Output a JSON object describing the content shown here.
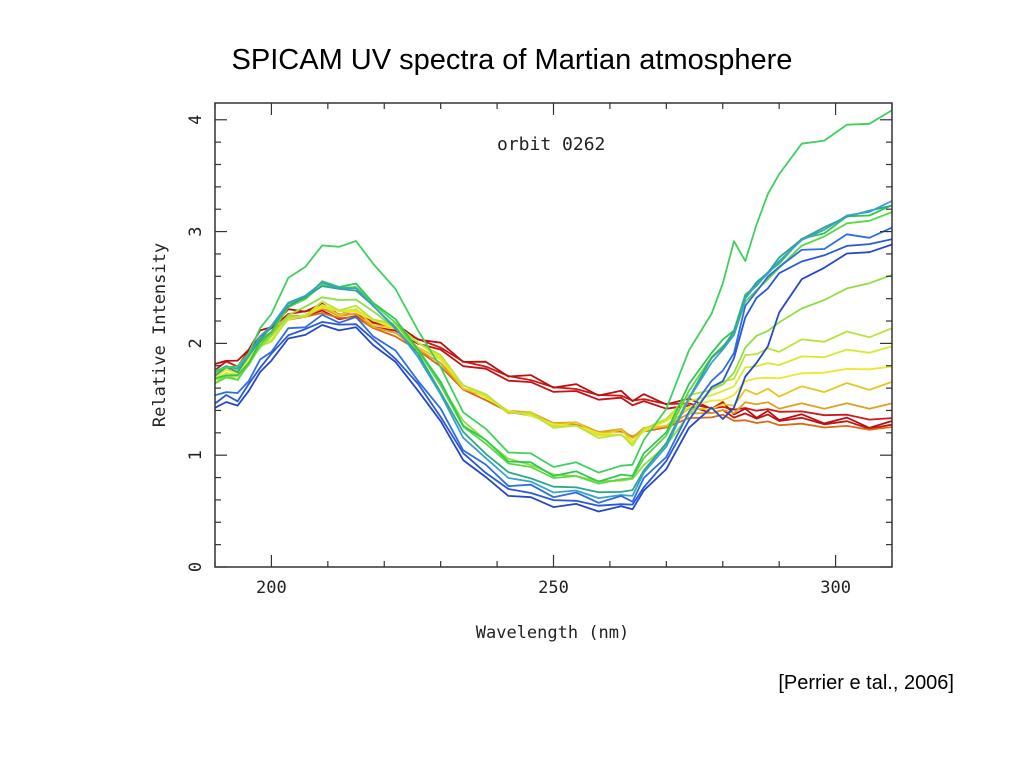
{
  "slide": {
    "title": "SPICAM UV spectra of Martian atmosphere",
    "citation": "[Perrier e tal., 2006]"
  },
  "chart_data": {
    "type": "line",
    "title": "",
    "annotation": "orbit 0262",
    "xlabel": "Wavelength (nm)",
    "ylabel": "Relative Intensity",
    "xlim": [
      190,
      310
    ],
    "ylim": [
      0,
      4.15
    ],
    "x_ticks": [
      200,
      250,
      300
    ],
    "y_ticks": [
      0,
      1,
      2,
      3,
      4
    ],
    "grid": false,
    "legend": "none",
    "x": [
      190,
      192,
      194,
      196,
      198,
      200,
      203,
      206,
      209,
      212,
      215,
      218,
      222,
      226,
      230,
      234,
      238,
      242,
      246,
      250,
      254,
      258,
      262,
      264,
      266,
      270,
      274,
      278,
      280,
      282,
      284,
      286,
      288,
      290,
      294,
      298,
      302,
      306,
      310
    ],
    "series": [
      {
        "color": "#cc1a1a",
        "values": [
          1.75,
          1.85,
          1.78,
          1.95,
          2.05,
          2.15,
          2.25,
          2.3,
          2.3,
          2.27,
          2.25,
          2.2,
          2.12,
          2.05,
          1.95,
          1.85,
          1.78,
          1.72,
          1.66,
          1.62,
          1.58,
          1.55,
          1.52,
          1.5,
          1.49,
          1.47,
          1.45,
          1.43,
          1.42,
          1.42,
          1.41,
          1.41,
          1.4,
          1.4,
          1.38,
          1.37,
          1.35,
          1.33,
          1.32
        ]
      },
      {
        "color": "#c41414",
        "values": [
          1.72,
          1.82,
          1.75,
          1.92,
          2.02,
          2.12,
          2.22,
          2.27,
          2.27,
          2.24,
          2.22,
          2.17,
          2.09,
          2.02,
          1.92,
          1.82,
          1.75,
          1.69,
          1.63,
          1.59,
          1.55,
          1.52,
          1.49,
          1.47,
          1.46,
          1.44,
          1.42,
          1.4,
          1.38,
          1.36,
          1.35,
          1.35,
          1.34,
          1.33,
          1.31,
          1.3,
          1.28,
          1.26,
          1.25
        ]
      },
      {
        "color": "#b81212",
        "values": [
          1.78,
          1.88,
          1.81,
          1.98,
          2.08,
          2.18,
          2.27,
          2.32,
          2.32,
          2.29,
          2.27,
          2.22,
          2.14,
          2.07,
          1.97,
          1.87,
          1.8,
          1.74,
          1.68,
          1.64,
          1.6,
          1.57,
          1.54,
          1.52,
          1.51,
          1.49,
          1.47,
          1.45,
          1.44,
          1.4,
          1.38,
          1.37,
          1.36,
          1.35,
          1.33,
          1.32,
          1.3,
          1.28,
          1.27
        ]
      },
      {
        "color": "#d86a1a",
        "values": [
          1.7,
          1.8,
          1.73,
          1.9,
          2.0,
          2.1,
          2.2,
          2.25,
          2.26,
          2.24,
          2.22,
          2.15,
          2.05,
          1.95,
          1.78,
          1.6,
          1.48,
          1.4,
          1.34,
          1.3,
          1.26,
          1.22,
          1.2,
          1.18,
          1.2,
          1.26,
          1.32,
          1.35,
          1.35,
          1.32,
          1.3,
          1.3,
          1.29,
          1.28,
          1.27,
          1.26,
          1.25,
          1.24,
          1.24
        ]
      },
      {
        "color": "#e0a020",
        "values": [
          1.72,
          1.82,
          1.75,
          1.92,
          2.02,
          2.12,
          2.22,
          2.27,
          2.29,
          2.27,
          2.24,
          2.17,
          2.07,
          1.97,
          1.8,
          1.62,
          1.5,
          1.42,
          1.36,
          1.31,
          1.27,
          1.23,
          1.21,
          1.18,
          1.22,
          1.28,
          1.35,
          1.4,
          1.38,
          1.4,
          1.45,
          1.48,
          1.45,
          1.44,
          1.44,
          1.44,
          1.44,
          1.44,
          1.44
        ]
      },
      {
        "color": "#e6c820",
        "values": [
          1.7,
          1.8,
          1.73,
          1.9,
          2.0,
          2.1,
          2.21,
          2.27,
          2.3,
          2.29,
          2.26,
          2.2,
          2.1,
          2.0,
          1.82,
          1.63,
          1.5,
          1.41,
          1.35,
          1.3,
          1.26,
          1.22,
          1.19,
          1.16,
          1.2,
          1.3,
          1.38,
          1.45,
          1.42,
          1.48,
          1.55,
          1.58,
          1.56,
          1.56,
          1.58,
          1.6,
          1.61,
          1.62,
          1.62
        ]
      },
      {
        "color": "#eee82a",
        "values": [
          1.68,
          1.78,
          1.71,
          1.88,
          1.98,
          2.08,
          2.2,
          2.27,
          2.31,
          2.3,
          2.27,
          2.22,
          2.12,
          2.02,
          1.84,
          1.64,
          1.5,
          1.41,
          1.34,
          1.29,
          1.25,
          1.21,
          1.17,
          1.14,
          1.2,
          1.32,
          1.42,
          1.5,
          1.48,
          1.55,
          1.65,
          1.7,
          1.68,
          1.7,
          1.72,
          1.75,
          1.76,
          1.78,
          1.78
        ]
      },
      {
        "color": "#d8ea30",
        "values": [
          1.66,
          1.76,
          1.69,
          1.86,
          1.96,
          2.06,
          2.19,
          2.27,
          2.32,
          2.31,
          2.28,
          2.23,
          2.13,
          2.03,
          1.85,
          1.65,
          1.5,
          1.41,
          1.34,
          1.28,
          1.24,
          1.2,
          1.16,
          1.13,
          1.2,
          1.34,
          1.46,
          1.56,
          1.55,
          1.64,
          1.76,
          1.82,
          1.8,
          1.83,
          1.86,
          1.9,
          1.92,
          1.94,
          1.95
        ]
      },
      {
        "color": "#b8e43a",
        "values": [
          1.64,
          1.74,
          1.67,
          1.84,
          1.94,
          2.05,
          2.19,
          2.28,
          2.34,
          2.33,
          2.3,
          2.25,
          2.14,
          2.04,
          1.86,
          1.66,
          1.51,
          1.42,
          1.34,
          1.28,
          1.23,
          1.19,
          1.15,
          1.12,
          1.2,
          1.36,
          1.5,
          1.62,
          1.62,
          1.72,
          1.86,
          1.94,
          1.92,
          1.96,
          2.0,
          2.05,
          2.07,
          2.09,
          2.1
        ]
      },
      {
        "color": "#8ee040",
        "values": [
          1.63,
          1.73,
          1.66,
          1.84,
          1.95,
          2.08,
          2.24,
          2.34,
          2.4,
          2.4,
          2.38,
          2.3,
          2.12,
          1.95,
          1.62,
          1.32,
          1.12,
          0.98,
          0.9,
          0.84,
          0.8,
          0.78,
          0.76,
          0.8,
          0.9,
          1.1,
          1.35,
          1.6,
          1.62,
          1.75,
          1.95,
          2.08,
          2.1,
          2.2,
          2.3,
          2.4,
          2.48,
          2.55,
          2.6
        ]
      },
      {
        "color": "#5ad844",
        "values": [
          1.62,
          1.72,
          1.65,
          1.84,
          1.96,
          2.12,
          2.3,
          2.42,
          2.5,
          2.52,
          2.48,
          2.38,
          2.16,
          1.96,
          1.6,
          1.28,
          1.08,
          0.95,
          0.87,
          0.82,
          0.79,
          0.77,
          0.76,
          0.82,
          0.95,
          1.2,
          1.55,
          1.9,
          1.95,
          2.1,
          2.35,
          2.5,
          2.55,
          2.7,
          2.85,
          2.98,
          3.05,
          3.12,
          3.15
        ]
      },
      {
        "color": "#30c850",
        "values": [
          1.65,
          1.75,
          1.68,
          1.86,
          1.98,
          2.14,
          2.32,
          2.44,
          2.52,
          2.54,
          2.5,
          2.4,
          2.18,
          1.98,
          1.62,
          1.3,
          1.1,
          0.98,
          0.9,
          0.85,
          0.82,
          0.8,
          0.79,
          0.85,
          0.98,
          1.24,
          1.6,
          1.95,
          2.0,
          2.15,
          2.4,
          2.55,
          2.6,
          2.75,
          2.9,
          3.02,
          3.1,
          3.18,
          3.2
        ]
      },
      {
        "color": "#2aa888",
        "values": [
          1.7,
          1.8,
          1.73,
          1.9,
          2.02,
          2.16,
          2.32,
          2.43,
          2.5,
          2.5,
          2.46,
          2.35,
          2.12,
          1.92,
          1.55,
          1.22,
          1.0,
          0.86,
          0.78,
          0.73,
          0.7,
          0.68,
          0.66,
          0.7,
          0.85,
          1.12,
          1.5,
          1.88,
          1.95,
          2.12,
          2.4,
          2.56,
          2.62,
          2.78,
          2.92,
          3.05,
          3.12,
          3.2,
          3.22
        ]
      },
      {
        "color": "#3aa0d0",
        "values": [
          1.72,
          1.82,
          1.75,
          1.92,
          2.04,
          2.18,
          2.34,
          2.45,
          2.52,
          2.52,
          2.47,
          2.36,
          2.12,
          1.9,
          1.52,
          1.18,
          0.95,
          0.82,
          0.74,
          0.69,
          0.66,
          0.64,
          0.62,
          0.66,
          0.82,
          1.1,
          1.48,
          1.85,
          1.92,
          2.1,
          2.38,
          2.55,
          2.6,
          2.76,
          2.9,
          3.04,
          3.12,
          3.2,
          3.25
        ]
      },
      {
        "color": "#2e6ee0",
        "values": [
          1.5,
          1.6,
          1.52,
          1.7,
          1.82,
          1.96,
          2.1,
          2.18,
          2.22,
          2.22,
          2.2,
          2.1,
          1.9,
          1.7,
          1.38,
          1.08,
          0.88,
          0.76,
          0.7,
          0.66,
          0.63,
          0.61,
          0.6,
          0.62,
          0.76,
          1.02,
          1.35,
          1.7,
          1.72,
          1.95,
          2.3,
          2.5,
          2.56,
          2.72,
          2.8,
          2.88,
          2.94,
          2.98,
          3.0
        ]
      },
      {
        "color": "#2a58d8",
        "values": [
          1.45,
          1.55,
          1.47,
          1.65,
          1.77,
          1.92,
          2.06,
          2.14,
          2.18,
          2.18,
          2.16,
          2.05,
          1.85,
          1.65,
          1.33,
          1.03,
          0.83,
          0.71,
          0.65,
          0.61,
          0.58,
          0.56,
          0.55,
          0.57,
          0.7,
          0.96,
          1.3,
          1.62,
          1.65,
          1.88,
          2.22,
          2.42,
          2.48,
          2.64,
          2.72,
          2.8,
          2.86,
          2.9,
          2.92
        ]
      },
      {
        "color": "#2448c8",
        "values": [
          1.4,
          1.5,
          1.42,
          1.6,
          1.72,
          1.87,
          2.02,
          2.1,
          2.14,
          2.14,
          2.12,
          2.01,
          1.81,
          1.6,
          1.28,
          0.98,
          0.78,
          0.66,
          0.6,
          0.56,
          0.54,
          0.52,
          0.52,
          0.54,
          0.66,
          0.9,
          1.22,
          1.45,
          1.3,
          1.45,
          1.68,
          1.85,
          1.95,
          2.3,
          2.55,
          2.7,
          2.78,
          2.84,
          2.86
        ]
      },
      {
        "color": "#40d060",
        "values": [
          1.72,
          1.82,
          1.76,
          1.95,
          2.1,
          2.3,
          2.55,
          2.72,
          2.84,
          2.9,
          2.88,
          2.75,
          2.45,
          2.15,
          1.75,
          1.42,
          1.2,
          1.06,
          0.98,
          0.93,
          0.9,
          0.88,
          0.87,
          0.95,
          1.1,
          1.45,
          1.9,
          2.3,
          2.5,
          2.95,
          2.7,
          3.1,
          3.3,
          3.55,
          3.75,
          3.85,
          3.92,
          4.0,
          4.05
        ]
      }
    ]
  }
}
